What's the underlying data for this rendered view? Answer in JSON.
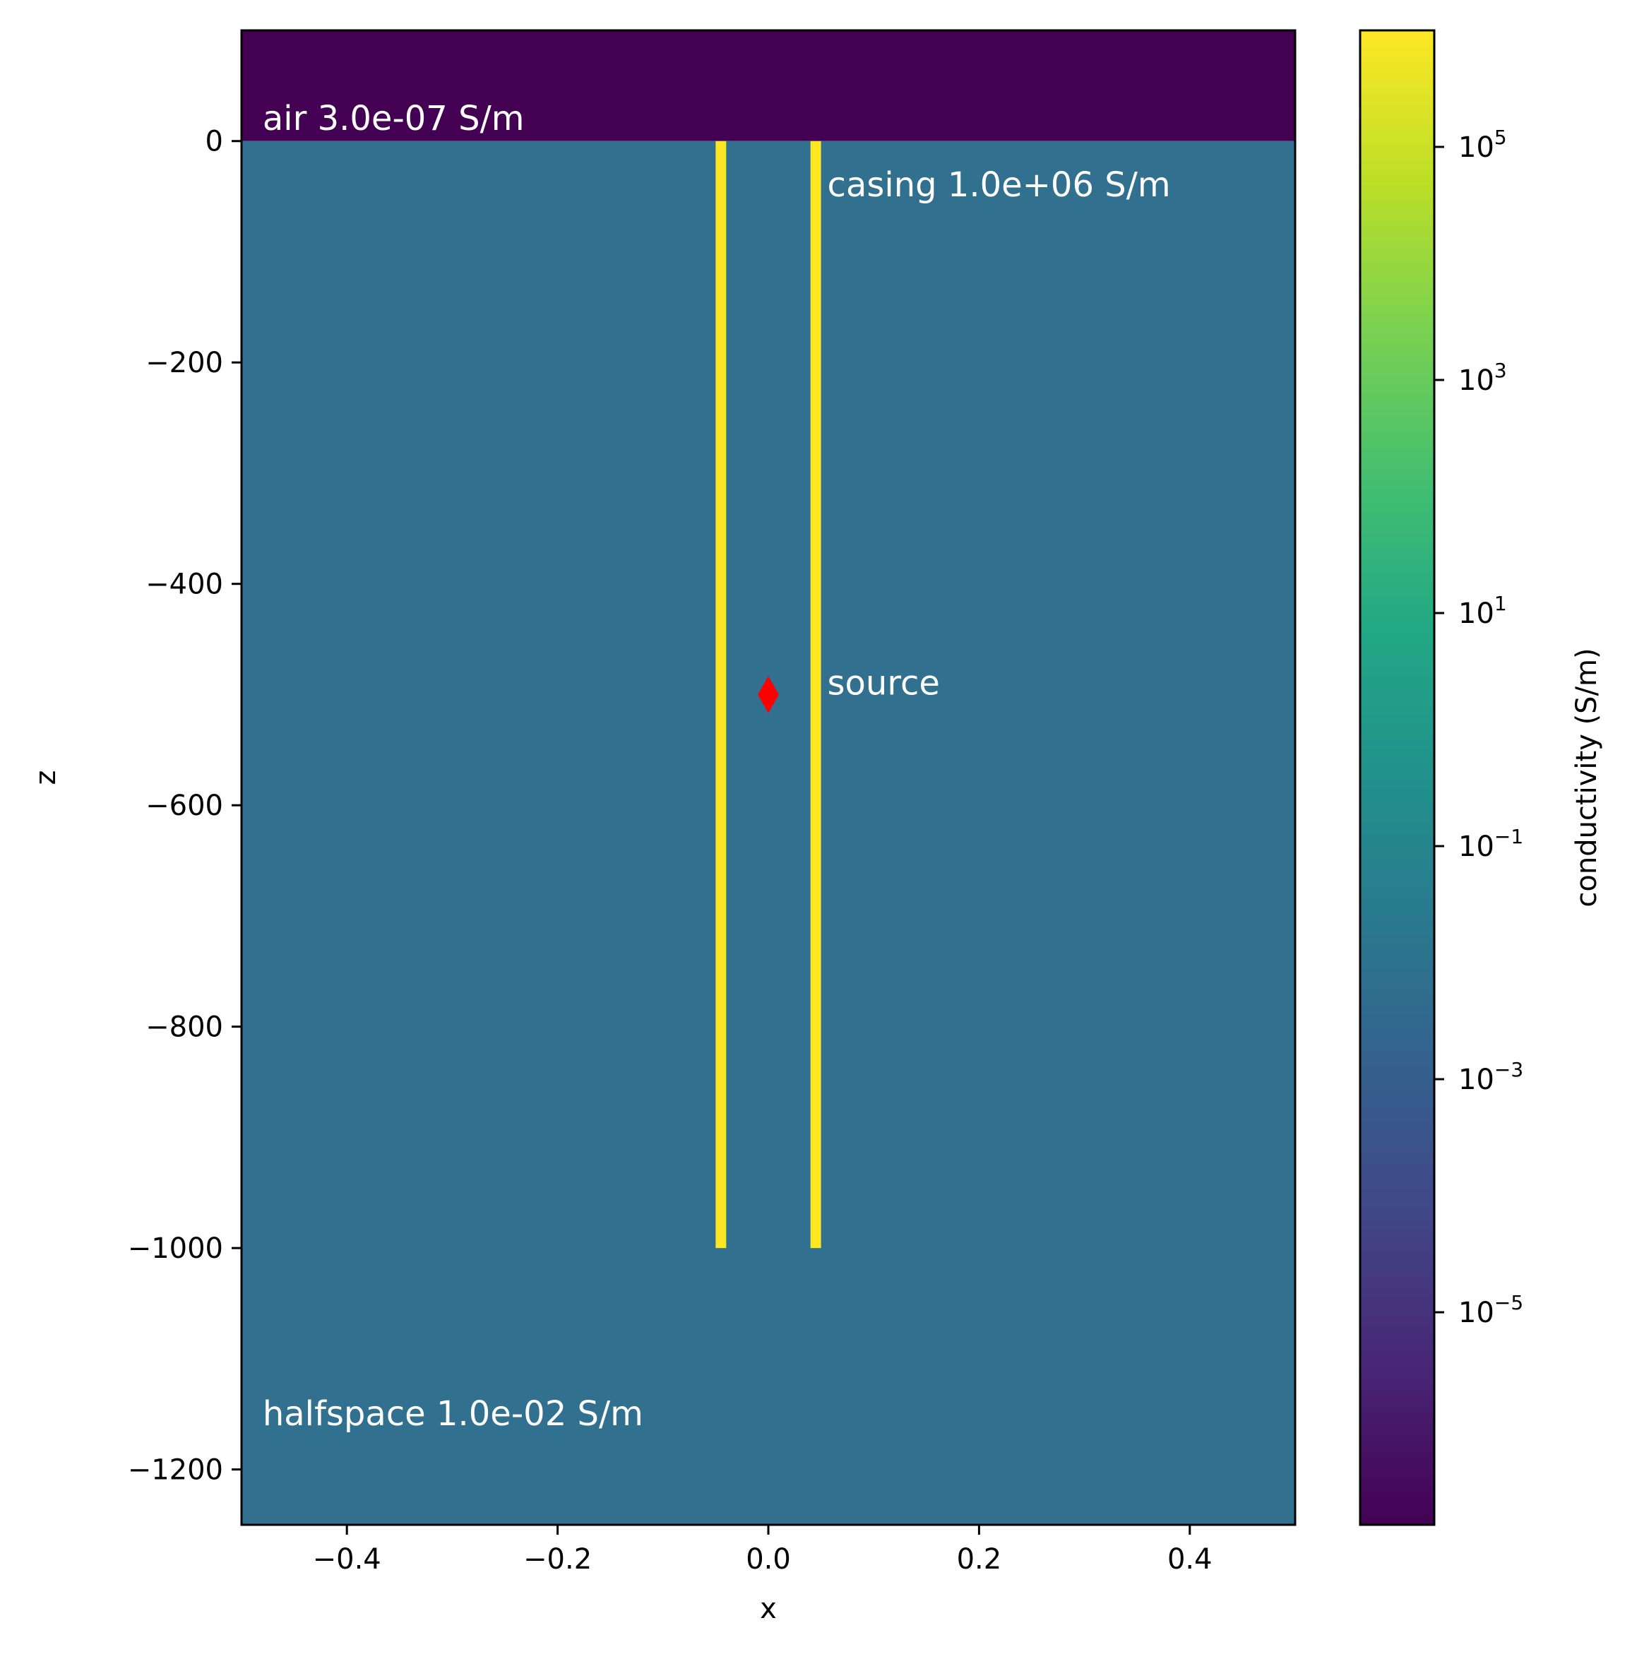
{
  "chart_data": {
    "type": "heatmap",
    "title": "",
    "xlabel": "x",
    "ylabel": "z",
    "xlim": [
      -0.5,
      0.5
    ],
    "ylim": [
      -1250,
      100
    ],
    "x_ticks": [
      -0.4,
      -0.2,
      0.0,
      0.2,
      0.4
    ],
    "x_tick_labels": [
      "−0.4",
      "−0.2",
      "0.0",
      "0.2",
      "0.4"
    ],
    "y_ticks": [
      0,
      -200,
      -400,
      -600,
      -800,
      -1000,
      -1200
    ],
    "y_tick_labels": [
      "0",
      "−200",
      "−400",
      "−600",
      "−800",
      "−1000",
      "−1200"
    ],
    "regions": [
      {
        "name": "air",
        "conductivity": 3e-07,
        "x_range": [
          -0.5,
          0.5
        ],
        "z_range": [
          0,
          100
        ],
        "color": "#440154"
      },
      {
        "name": "halfspace",
        "conductivity": 0.01,
        "x_range": [
          -0.5,
          0.5
        ],
        "z_range": [
          -1250,
          0
        ],
        "color": "#31708e"
      },
      {
        "name": "casing",
        "conductivity": 1000000.0,
        "x_range": [
          -0.05,
          -0.04
        ],
        "z_range": [
          -1000,
          0
        ],
        "color": "#fde725"
      },
      {
        "name": "casing",
        "conductivity": 1000000.0,
        "x_range": [
          0.04,
          0.05
        ],
        "z_range": [
          -1000,
          0
        ],
        "color": "#fde725"
      }
    ],
    "source": {
      "x": 0.0,
      "z": -500,
      "marker": "diamond",
      "color": "#ff0000"
    },
    "annotations": [
      {
        "text": "air 3.0e-07 S/m",
        "x": -0.48,
        "z": 10
      },
      {
        "text": "casing 1.0e+06 S/m",
        "x": 0.056,
        "z": -50
      },
      {
        "text": "source",
        "x": 0.056,
        "z": -500
      },
      {
        "text": "halfspace 1.0e-02 S/m",
        "x": -0.48,
        "z": -1160
      }
    ],
    "colorbar": {
      "label": "conductivity (S/m)",
      "scale": "log",
      "range": [
        1.5e-07,
        1000000.0
      ],
      "colormap": "viridis",
      "ticks": [
        {
          "base": "10",
          "exp": "5",
          "value": 100000.0
        },
        {
          "base": "10",
          "exp": "3",
          "value": 1000.0
        },
        {
          "base": "10",
          "exp": "1",
          "value": 10
        },
        {
          "base": "10",
          "exp": "−1",
          "value": 0.1
        },
        {
          "base": "10",
          "exp": "−3",
          "value": 0.001
        },
        {
          "base": "10",
          "exp": "−5",
          "value": 1e-05
        }
      ]
    }
  }
}
